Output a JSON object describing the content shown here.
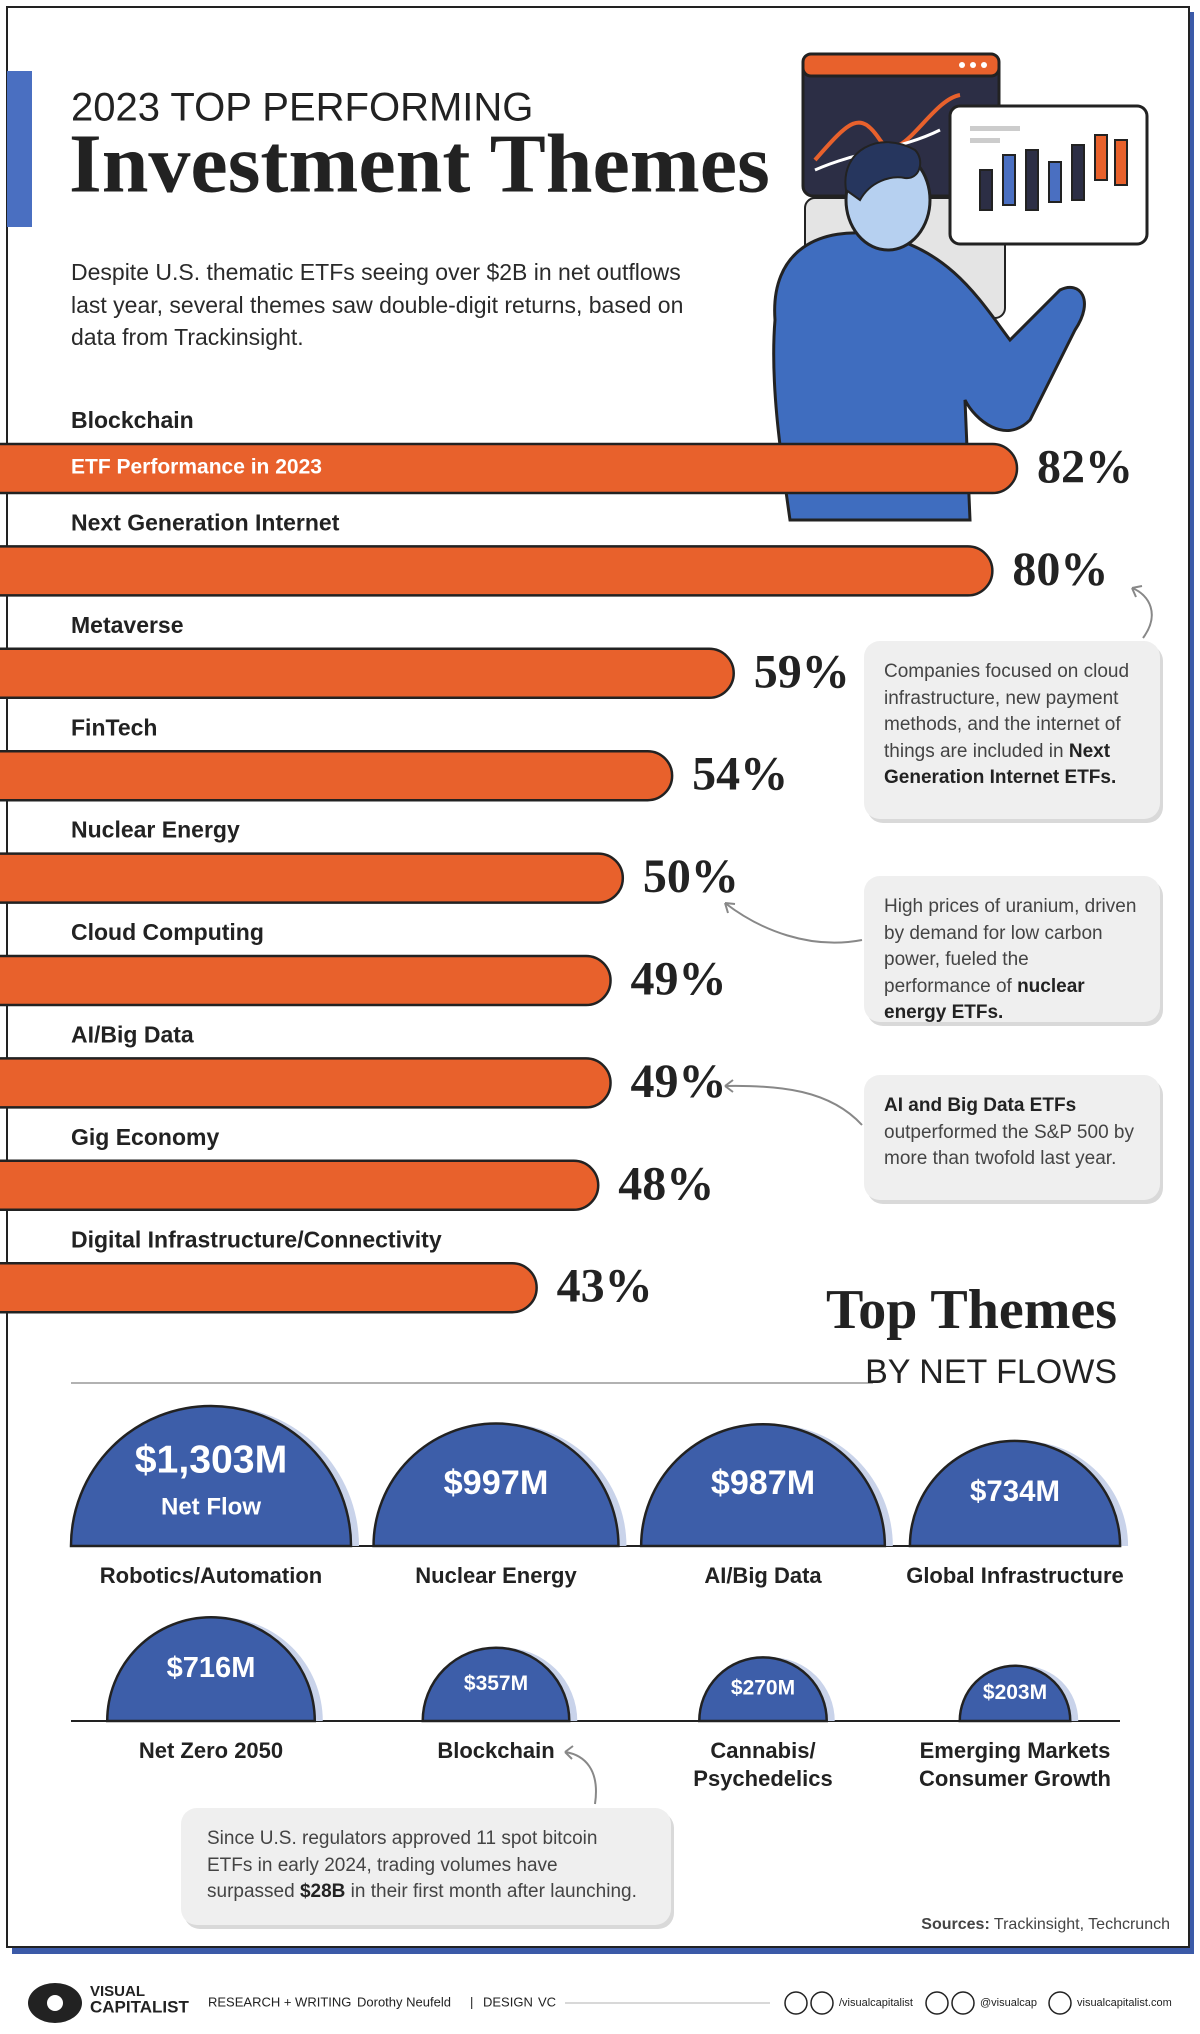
{
  "header": {
    "kicker": "2023 TOP PERFORMING",
    "title": "Investment Themes",
    "subtitle": "Despite U.S. thematic ETFs seeing over $2B in net outflows last year, several themes saw double-digit returns, based on data from Trackinsight."
  },
  "chart_data": [
    {
      "type": "bar",
      "bar_note": "ETF Performance in 2023",
      "categories": [
        "Blockchain",
        "Next Generation Internet",
        "Metaverse",
        "FinTech",
        "Nuclear Energy",
        "Cloud Computing",
        "AI/Big Data",
        "Gig Economy",
        "Digital Infrastructure/Connectivity"
      ],
      "values": [
        82,
        80,
        59,
        54,
        50,
        49,
        49,
        48,
        43
      ],
      "value_labels": [
        "82%",
        "80%",
        "59%",
        "54%",
        "50%",
        "49%",
        "49%",
        "48%",
        "43%"
      ],
      "color": "#e8612c",
      "annotations": [
        [
          {
            "text": "Companies focused on cloud infrastructure, new payment methods, and the internet of things are included in "
          },
          {
            "text": "Next Generation Internet ETFs.",
            "bold": true
          }
        ],
        [
          {
            "text": "High prices of uranium, driven by demand for low carbon power, fueled the performance of "
          },
          {
            "text": "nuclear energy ETFs.",
            "bold": true
          }
        ],
        [
          {
            "text": "AI and Big Data ETFs",
            "bold": true
          },
          {
            "text": " outperformed the S&P 500 by more than twofold last year."
          }
        ]
      ]
    },
    {
      "type": "semicircle",
      "title": "Top Themes",
      "subtitle": "BY NET FLOWS",
      "categories": [
        "Robotics/Automation",
        "Nuclear Energy",
        "AI/Big Data",
        "Global Infrastructure",
        "Net Zero 2050",
        "Blockchain",
        "Cannabis/\nPsychedelics",
        "Emerging Markets\nConsumer Growth"
      ],
      "values": [
        1303,
        997,
        987,
        734,
        716,
        357,
        270,
        203
      ],
      "value_labels": [
        "$1,303M",
        "$997M",
        "$987M",
        "$734M",
        "$716M",
        "$357M",
        "$270M",
        "$203M"
      ],
      "value_note": "Net Flow",
      "color": "#3d5ea9",
      "annotation": [
        {
          "text": "Since U.S. regulators approved 11 spot bitcoin ETFs in early 2024, trading volumes have surpassed "
        },
        {
          "text": "$28B",
          "bold": true
        },
        {
          "text": " in their first month after launching."
        }
      ]
    }
  ],
  "sources": [
    {
      "text": "Sources:",
      "bold": true
    },
    {
      "text": " Trackinsight, Techcrunch"
    }
  ],
  "footer": {
    "brand_top": "VISUAL",
    "brand_bottom": "CAPITALIST",
    "research_label": "RESEARCH + WRITING",
    "author": "Dorothy Neufeld",
    "separator": "|",
    "design_label": "DESIGN",
    "designer": "VC",
    "facebook_youtube": "/visualcapitalist",
    "x_instagram": "@visualcap",
    "website": "visualcapitalist.com"
  }
}
